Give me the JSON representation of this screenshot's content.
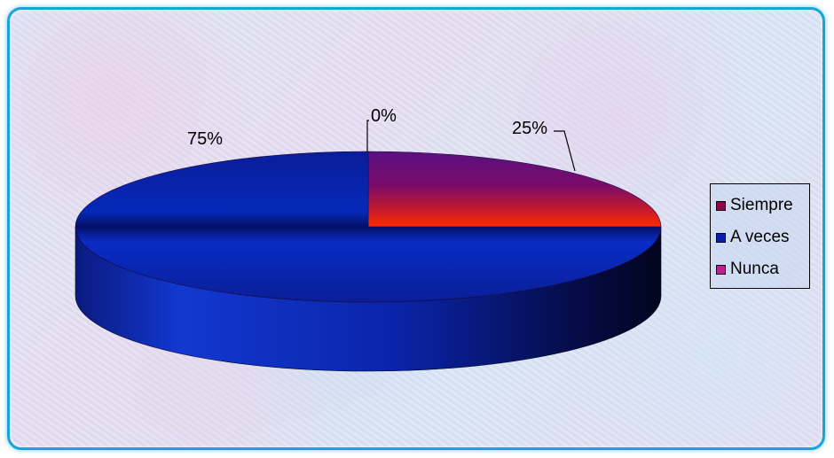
{
  "chart_data": {
    "type": "pie",
    "categories": [
      "Siempre",
      "A veces",
      "Nunca"
    ],
    "values": [
      25,
      75,
      0
    ],
    "data_labels": [
      "25%",
      "75%",
      "0%"
    ],
    "colors": [
      "#8b0a4a",
      "#0a1fa8",
      "#c0208f"
    ],
    "legend_position": "right",
    "three_d": true
  }
}
